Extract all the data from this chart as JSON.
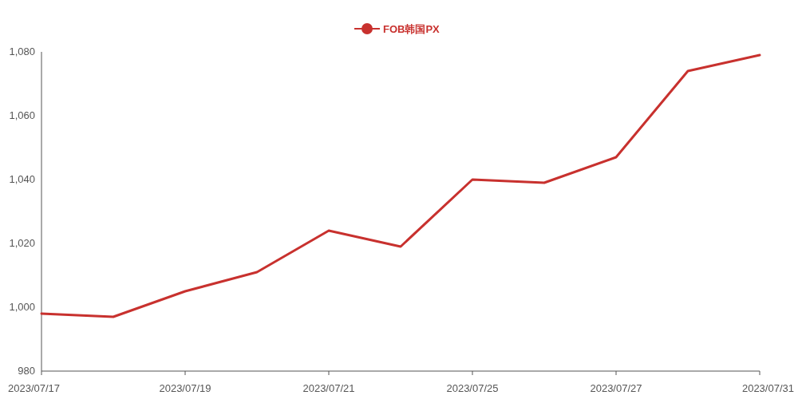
{
  "chart_data": {
    "type": "line",
    "categories": [
      "2023/07/17",
      null,
      "2023/07/19",
      null,
      "2023/07/21",
      null,
      "2023/07/25",
      null,
      "2023/07/27",
      null,
      "2023/07/31"
    ],
    "series": [
      {
        "name": "FOB韩国PX",
        "color": "#c8312e",
        "values": [
          998,
          997,
          1005,
          1011,
          1024,
          1019,
          1040,
          1039,
          1047,
          1074,
          1079
        ]
      }
    ],
    "ylim": [
      980,
      1080
    ],
    "yticks": [
      980,
      {
        "value": 1000,
        "label": "1,000"
      },
      {
        "value": 1020,
        "label": "1,020"
      },
      {
        "value": 1040,
        "label": "1,040"
      },
      {
        "value": 1060,
        "label": "1,060"
      },
      {
        "value": 1080,
        "label": "1,080"
      }
    ],
    "grid": false,
    "legend": "top",
    "marker": "none",
    "line_style": "solid"
  }
}
